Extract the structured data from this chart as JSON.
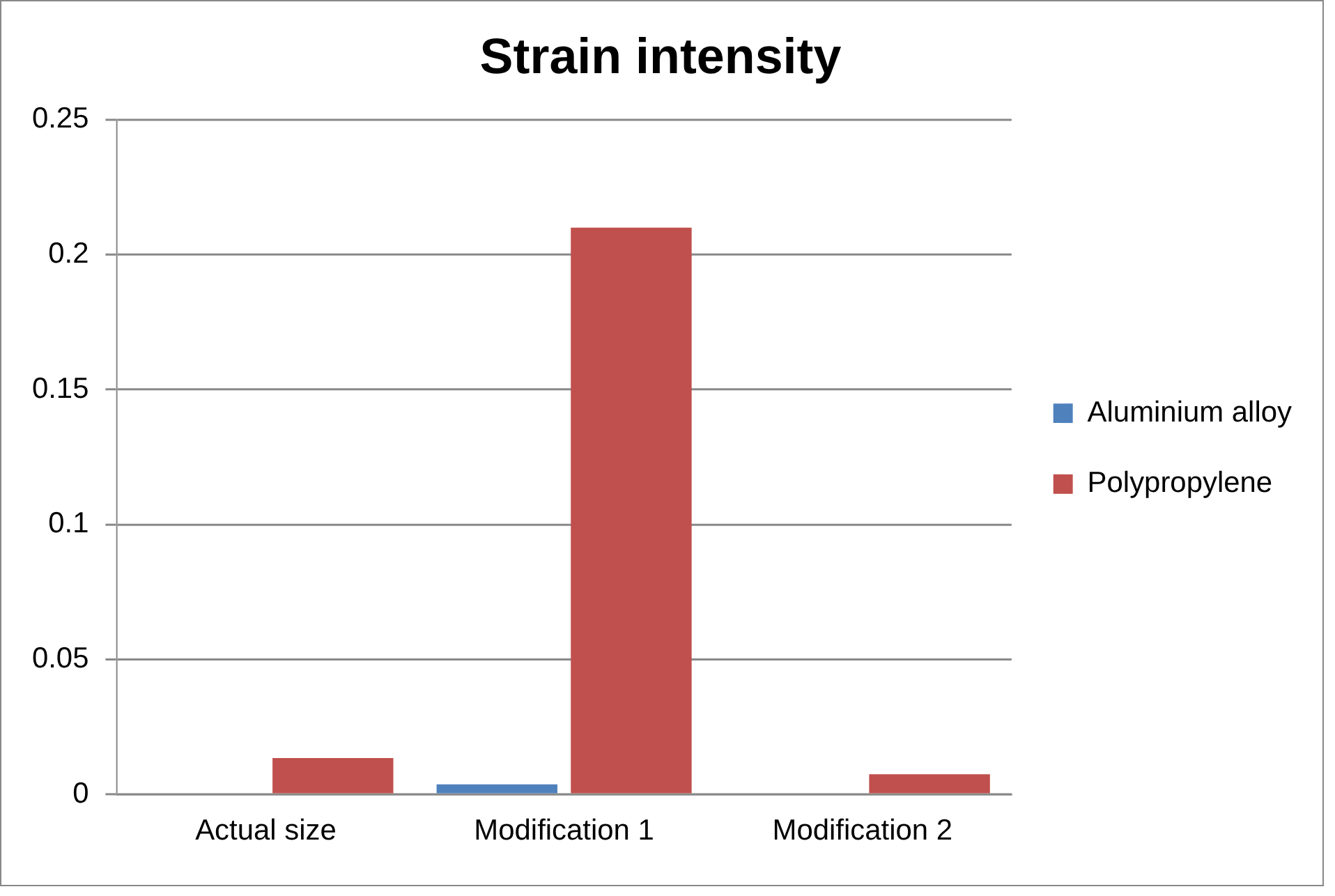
{
  "chart_data": {
    "type": "bar",
    "title": "Strain intensity",
    "categories": [
      "Actual size",
      "Modification 1",
      "Modification 2"
    ],
    "series": [
      {
        "name": "Aluminium alloy",
        "color": "#4f81bd",
        "values": [
          0,
          0.0037,
          0
        ]
      },
      {
        "name": "Polypropylene",
        "color": "#c0504d",
        "values": [
          0.0134,
          0.21,
          0.0074
        ]
      }
    ],
    "ylim": [
      0,
      0.25
    ],
    "yticks": [
      0,
      0.05,
      0.1,
      0.15,
      0.2,
      0.25
    ],
    "grid": "y",
    "legend": "right"
  }
}
